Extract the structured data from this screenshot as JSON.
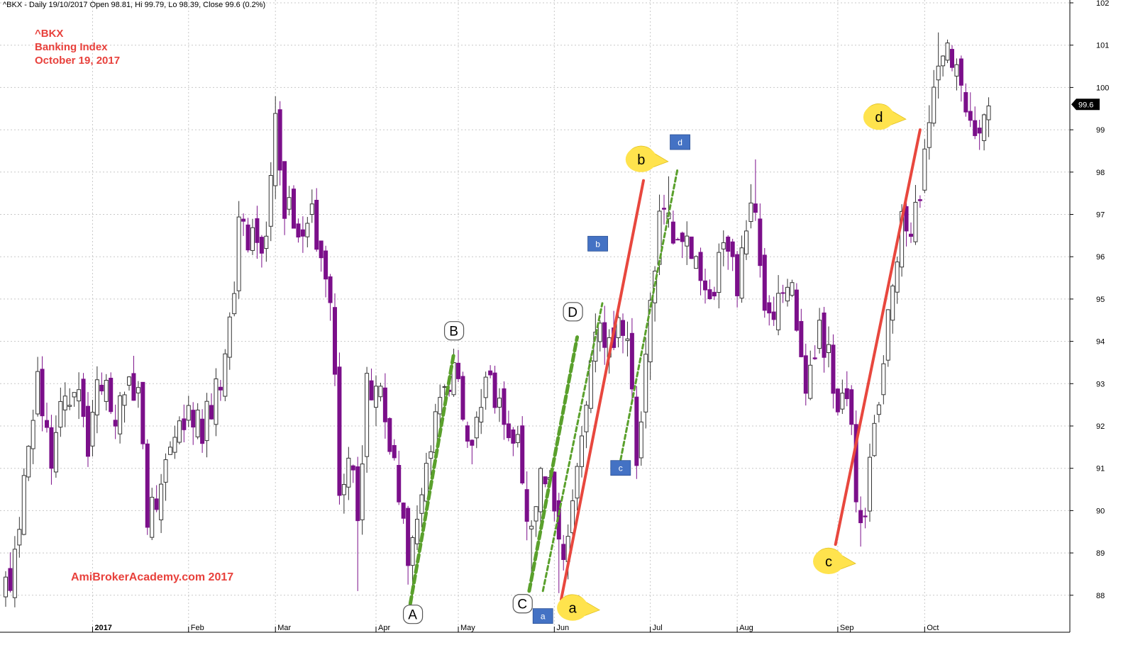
{
  "header": {
    "text": "^BKX - Daily 19/10/2017 Open 98.81, Hi 99.79, Lo 98.39, Close 99.6 (0.2%)"
  },
  "title_block": {
    "line1": "^BKX",
    "line2": "Banking Index",
    "line3": "October 19, 2017"
  },
  "watermark": "AmiBrokerAcademy.com  2017",
  "colors": {
    "up_candle": "#ffffff",
    "down_candle": "#7b0f8a",
    "wick": "#444444",
    "red_line": "#e8473e",
    "green_line": "#5aa02c",
    "callout_yellow": "#ffe34d",
    "box_blue": "#4472c4",
    "grid": "#c8c8c8",
    "text_red": "#e8413c"
  },
  "chart_data": {
    "type": "candlestick",
    "symbol": "^BKX",
    "ylim": [
      87.5,
      102.2
    ],
    "y_ticks": [
      "88",
      "89",
      "90",
      "91",
      "92",
      "93",
      "94",
      "95",
      "96",
      "97",
      "98",
      "99",
      "100",
      "101",
      "102"
    ],
    "x_labels": [
      {
        "label": "2017",
        "day": 19
      },
      {
        "label": "Feb",
        "day": 40
      },
      {
        "label": "Mar",
        "day": 59
      },
      {
        "label": "Apr",
        "day": 81
      },
      {
        "label": "May",
        "day": 99
      },
      {
        "label": "Jun",
        "day": 120
      },
      {
        "label": "Jul",
        "day": 141
      },
      {
        "label": "Aug",
        "day": 160
      },
      {
        "label": "Sep",
        "day": 182
      },
      {
        "label": "Oct",
        "day": 201
      }
    ],
    "total_days": 216,
    "last_price": "99.6",
    "close_path": [
      [
        0,
        88.1
      ],
      [
        3,
        89.3
      ],
      [
        5,
        91.5
      ],
      [
        7,
        92.9
      ],
      [
        10,
        91.4
      ],
      [
        13,
        92.6
      ],
      [
        16,
        92.6
      ],
      [
        18,
        91.5
      ],
      [
        20,
        93.1
      ],
      [
        24,
        92.4
      ],
      [
        27,
        92.8
      ],
      [
        29,
        92.7
      ],
      [
        31,
        89.9
      ],
      [
        34,
        90.3
      ],
      [
        37,
        91.7
      ],
      [
        40,
        92.2
      ],
      [
        43,
        92.0
      ],
      [
        46,
        92.7
      ],
      [
        49,
        94.2
      ],
      [
        51,
        96.8
      ],
      [
        54,
        96.3
      ],
      [
        57,
        96.4
      ],
      [
        59,
        99.2
      ],
      [
        61,
        97.2
      ],
      [
        64,
        96.8
      ],
      [
        67,
        96.9
      ],
      [
        69,
        96.2
      ],
      [
        71,
        94.6
      ],
      [
        72,
        93.4
      ],
      [
        73,
        90.8
      ],
      [
        76,
        90.8
      ],
      [
        77,
        89.5
      ],
      [
        79,
        93.1
      ],
      [
        82,
        92.6
      ],
      [
        84,
        91.5
      ],
      [
        86,
        90.3
      ],
      [
        88,
        89.0
      ],
      [
        90,
        89.6
      ],
      [
        92,
        90.7
      ],
      [
        94,
        92.1
      ],
      [
        96,
        93.0
      ],
      [
        98,
        93.4
      ],
      [
        100,
        92.1
      ],
      [
        102,
        91.9
      ],
      [
        104,
        92.6
      ],
      [
        106,
        93.0
      ],
      [
        108,
        92.4
      ],
      [
        110,
        91.5
      ],
      [
        112,
        92.2
      ],
      [
        113,
        90.4
      ],
      [
        115,
        89.3
      ],
      [
        116,
        90.5
      ],
      [
        118,
        91.0
      ],
      [
        120,
        89.7
      ],
      [
        122,
        88.5
      ],
      [
        124,
        89.9
      ],
      [
        126,
        91.9
      ],
      [
        128,
        93.7
      ],
      [
        130,
        94.3
      ],
      [
        132,
        93.8
      ],
      [
        135,
        94.5
      ],
      [
        137,
        93.0
      ],
      [
        138,
        91.3
      ],
      [
        140,
        93.7
      ],
      [
        142,
        96.1
      ],
      [
        144,
        97.3
      ],
      [
        146,
        96.6
      ],
      [
        148,
        96.3
      ],
      [
        150,
        96.0
      ],
      [
        152,
        95.4
      ],
      [
        154,
        94.9
      ],
      [
        156,
        95.9
      ],
      [
        158,
        96.5
      ],
      [
        160,
        95.4
      ],
      [
        162,
        96.8
      ],
      [
        164,
        97.0
      ],
      [
        166,
        95.1
      ],
      [
        168,
        94.3
      ],
      [
        170,
        95.3
      ],
      [
        172,
        95.0
      ],
      [
        174,
        93.2
      ],
      [
        176,
        93.1
      ],
      [
        178,
        94.2
      ],
      [
        180,
        93.6
      ],
      [
        182,
        92.7
      ],
      [
        183,
        93.2
      ],
      [
        185,
        91.6
      ],
      [
        186,
        90.1
      ],
      [
        188,
        89.7
      ],
      [
        190,
        92.1
      ],
      [
        192,
        93.5
      ],
      [
        194,
        95.2
      ],
      [
        196,
        96.9
      ],
      [
        198,
        96.8
      ],
      [
        200,
        97.4
      ],
      [
        201,
        98.6
      ],
      [
        203,
        99.6
      ],
      [
        205,
        100.6
      ],
      [
        207,
        100.8
      ],
      [
        209,
        100.4
      ],
      [
        211,
        99.3
      ],
      [
        213,
        99.0
      ],
      [
        215,
        99.6
      ]
    ],
    "extremes": [
      [
        59,
        99.79
      ],
      [
        60,
        98.0
      ],
      [
        77,
        88.1
      ],
      [
        89,
        87.95
      ],
      [
        115,
        88.3
      ],
      [
        121,
        88.05
      ],
      [
        145,
        97.9
      ],
      [
        164,
        98.3
      ],
      [
        187,
        89.15
      ],
      [
        204,
        101.3
      ]
    ],
    "annotations": [
      {
        "kind": "label-box",
        "text": "A",
        "day": 89,
        "value": 87.55
      },
      {
        "kind": "label-box",
        "text": "B",
        "day": 98,
        "value": 94.25
      },
      {
        "kind": "label-box",
        "text": "C",
        "day": 113,
        "value": 87.8
      },
      {
        "kind": "label-box",
        "text": "D",
        "day": 124,
        "value": 94.7
      },
      {
        "kind": "callout",
        "text": "a",
        "day": 124,
        "value": 87.7
      },
      {
        "kind": "callout",
        "text": "b",
        "day": 139,
        "value": 98.3
      },
      {
        "kind": "callout",
        "text": "c",
        "day": 180,
        "value": 88.8
      },
      {
        "kind": "callout",
        "text": "d",
        "day": 191,
        "value": 99.3
      },
      {
        "kind": "tag",
        "text": "a",
        "day": 117.5,
        "value": 87.5
      },
      {
        "kind": "tag",
        "text": "b",
        "day": 129.5,
        "value": 96.3
      },
      {
        "kind": "tag",
        "text": "c",
        "day": 134.5,
        "value": 91.0
      },
      {
        "kind": "tag",
        "text": "d",
        "day": 147.5,
        "value": 98.7
      }
    ],
    "lines": [
      {
        "color": "red",
        "width": 4,
        "from": [
          121.5,
          87.9
        ],
        "to": [
          139.5,
          97.8
        ]
      },
      {
        "color": "red",
        "width": 4,
        "from": [
          181.5,
          89.2
        ],
        "to": [
          200,
          99.0
        ]
      },
      {
        "color": "green",
        "width": 5,
        "dash": true,
        "from": [
          88.5,
          87.8
        ],
        "to": [
          98,
          93.7
        ]
      },
      {
        "color": "green",
        "width": 5,
        "dash": true,
        "from": [
          114.5,
          88.1
        ],
        "to": [
          125,
          94.1
        ]
      },
      {
        "color": "green",
        "width": 3,
        "dash": true,
        "from": [
          117.5,
          88.1
        ],
        "to": [
          130.5,
          94.9
        ]
      },
      {
        "color": "green",
        "width": 3,
        "dash": true,
        "from": [
          134.5,
          91.2
        ],
        "to": [
          147,
          98.1
        ]
      }
    ]
  }
}
